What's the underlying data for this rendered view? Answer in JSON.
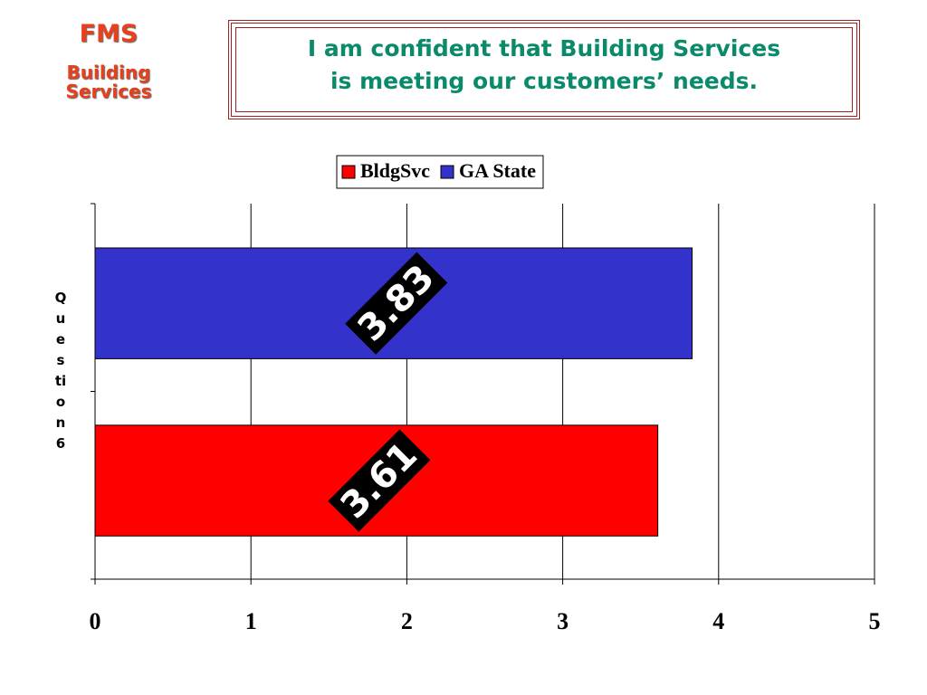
{
  "header": {
    "brand": "FMS",
    "unit": "Building Services",
    "title_line1": "I am confident that Building Services",
    "title_line2": "is meeting our customers’ needs."
  },
  "chart_data": {
    "type": "bar",
    "orientation": "horizontal",
    "categories": [
      "Question 6"
    ],
    "series": [
      {
        "name": "BldgSvc",
        "color": "#ff0000",
        "values": [
          3.61
        ]
      },
      {
        "name": "GA State",
        "color": "#3333cc",
        "values": [
          3.83
        ]
      }
    ],
    "xlim": [
      0,
      5
    ],
    "xticks": [
      0,
      1,
      2,
      3,
      4,
      5
    ],
    "grid": true,
    "legend": "top"
  }
}
